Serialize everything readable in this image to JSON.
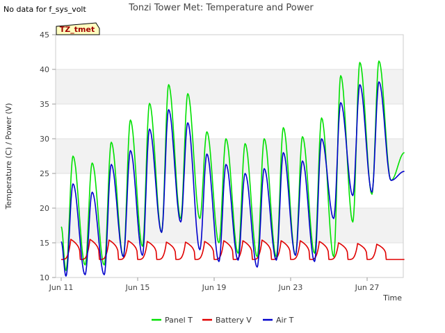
{
  "no_data_note": "No data for f_sys_volt",
  "chart_data": {
    "type": "line",
    "title": "Tonzi Tower Met: Temperature and Power",
    "xlabel": "Time",
    "ylabel": "Temperature (C) / Power (V)",
    "ylim": [
      10,
      45
    ],
    "yticks": [
      10,
      15,
      20,
      25,
      30,
      35,
      40,
      45
    ],
    "xlim": [
      0,
      18
    ],
    "xticks": [
      {
        "label": "Jun 11",
        "x": 0
      },
      {
        "label": "Jun 15",
        "x": 4
      },
      {
        "label": "Jun 19",
        "x": 8
      },
      {
        "label": "Jun 23",
        "x": 12
      },
      {
        "label": "Jun 27",
        "x": 16
      }
    ],
    "x_unit": "days since Jun 11 00:00",
    "grid": "horizontal bands",
    "legend_position": "bottom",
    "station_tag": "TZ_tmet",
    "series": [
      {
        "name": "Panel T",
        "color": "#00e000",
        "daily_min": [
          11.0,
          11.8,
          11.8,
          13.0,
          14.5,
          16.5,
          18.5,
          18.5,
          15.0,
          13.5,
          13.0,
          13.0,
          13.2,
          13.5,
          13.0,
          18.0,
          22.0,
          24.0
        ],
        "daily_max": [
          27.5,
          26.5,
          29.5,
          32.7,
          35.1,
          37.8,
          36.5,
          31.0,
          30.0,
          29.3,
          30.0,
          31.6,
          30.3,
          33.0,
          39.1,
          41.0,
          41.2
        ],
        "end": 28.0
      },
      {
        "name": "Battery V",
        "color": "#e00000",
        "daily_min": [
          12.6,
          12.6,
          12.6,
          12.6,
          12.6,
          12.6,
          12.6,
          12.6,
          12.6,
          12.6,
          12.6,
          12.6,
          12.6,
          12.6,
          12.6,
          12.6,
          12.6,
          12.6
        ],
        "daily_max": [
          15.5,
          15.5,
          15.4,
          15.3,
          15.2,
          15.1,
          15.1,
          15.2,
          15.3,
          15.3,
          15.4,
          15.3,
          15.3,
          15.2,
          15.0,
          14.9,
          14.8
        ],
        "end": 12.6
      },
      {
        "name": "Air T",
        "color": "#0000cc",
        "daily_min": [
          10.2,
          10.4,
          10.4,
          13.0,
          13.2,
          16.5,
          18.0,
          14.0,
          12.3,
          12.5,
          11.5,
          12.5,
          13.2,
          12.3,
          18.5,
          21.8,
          22.3,
          24.0
        ],
        "daily_max": [
          23.5,
          22.3,
          26.3,
          28.3,
          31.4,
          34.2,
          32.3,
          27.8,
          26.3,
          25.0,
          25.7,
          28.0,
          26.8,
          30.0,
          35.2,
          37.8,
          38.2
        ],
        "end": 25.3
      }
    ]
  }
}
